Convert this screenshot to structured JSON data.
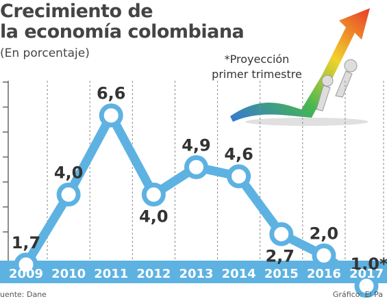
{
  "title_lines": [
    "Crecimiento de",
    "la economía colombiana"
  ],
  "subtitle": "(En porcentaje)",
  "note_lines": [
    "*Proyección",
    "primer trimestre"
  ],
  "footer": {
    "source": "uente: Dane",
    "credit": "Gráfico: El Pa"
  },
  "colors": {
    "line": "#5db2e2",
    "point_fill": "#ffffff",
    "grid": "#888888",
    "year_bar": "#5db2e2",
    "year_text": "#ffffff",
    "label_text": "#333333"
  },
  "chart_data": {
    "type": "line",
    "categories": [
      "2009",
      "2010",
      "2011",
      "2012",
      "2013",
      "2014",
      "2015",
      "2016",
      "2017"
    ],
    "series": [
      {
        "values": [
          1.7,
          4.0,
          6.6,
          4.0,
          4.9,
          4.6,
          2.7,
          2.0,
          1.0
        ]
      }
    ],
    "data_labels": [
      "1,7",
      "4,0",
      "6,6",
      "4,0",
      "4,9",
      "4,6",
      "2,7",
      "2,0",
      "1,0*"
    ],
    "title": "Crecimiento de la economía colombiana",
    "ylabel": "(En porcentaje)",
    "grid": true
  }
}
